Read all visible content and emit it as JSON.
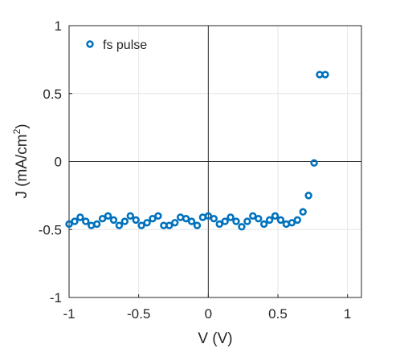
{
  "chart_data": {
    "type": "scatter",
    "xlabel": "V (V)",
    "ylabel_main": "J (mA/cm",
    "ylabel_sup": "2",
    "ylabel_close": ")",
    "xlim": [
      -1,
      1.1
    ],
    "ylim": [
      -1,
      1
    ],
    "xticks": [
      -1,
      -0.5,
      0,
      0.5,
      1
    ],
    "xtick_labels": [
      "-1",
      "-0.5",
      "0",
      "0.5",
      "1"
    ],
    "yticks": [
      -1,
      -0.5,
      0,
      0.5,
      1
    ],
    "ytick_labels": [
      "-1",
      "-0.5",
      "0",
      "0.5",
      "1"
    ],
    "grid": true,
    "legend_position": "top-left",
    "marker_color": "#0072BD",
    "series": [
      {
        "name": "fs pulse",
        "x": [
          -1.0,
          -0.96,
          -0.92,
          -0.88,
          -0.84,
          -0.8,
          -0.76,
          -0.72,
          -0.68,
          -0.64,
          -0.6,
          -0.56,
          -0.52,
          -0.48,
          -0.44,
          -0.4,
          -0.36,
          -0.32,
          -0.28,
          -0.24,
          -0.2,
          -0.16,
          -0.12,
          -0.08,
          -0.04,
          0.0,
          0.04,
          0.08,
          0.12,
          0.16,
          0.2,
          0.24,
          0.28,
          0.32,
          0.36,
          0.4,
          0.44,
          0.48,
          0.52,
          0.56,
          0.6,
          0.64,
          0.68,
          0.72,
          0.76,
          0.8,
          0.84
        ],
        "y": [
          -0.46,
          -0.44,
          -0.41,
          -0.44,
          -0.47,
          -0.46,
          -0.42,
          -0.4,
          -0.43,
          -0.47,
          -0.44,
          -0.4,
          -0.43,
          -0.47,
          -0.45,
          -0.42,
          -0.4,
          -0.47,
          -0.47,
          -0.45,
          -0.41,
          -0.42,
          -0.44,
          -0.47,
          -0.41,
          -0.4,
          -0.42,
          -0.46,
          -0.44,
          -0.41,
          -0.44,
          -0.48,
          -0.44,
          -0.4,
          -0.42,
          -0.46,
          -0.43,
          -0.4,
          -0.43,
          -0.46,
          -0.45,
          -0.43,
          -0.37,
          -0.25,
          -0.01,
          0.64,
          0.64
        ]
      }
    ]
  }
}
